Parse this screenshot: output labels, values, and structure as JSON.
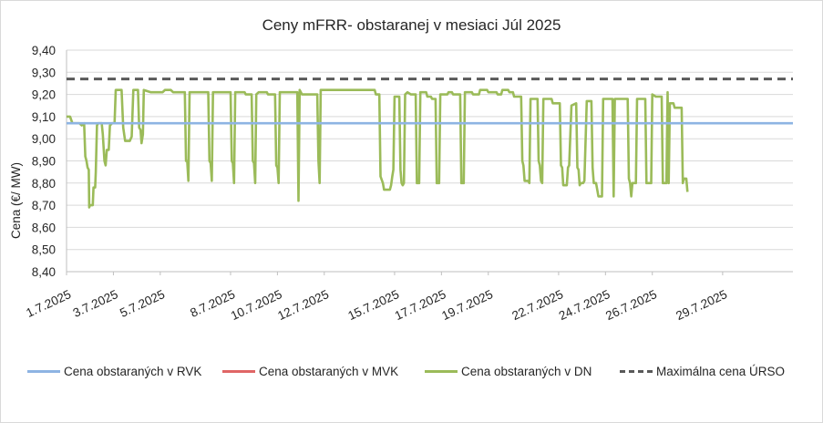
{
  "colors": {
    "rvk": "#8eb4e3",
    "mvk": "#e06666",
    "dn": "#9bbb59",
    "max": "#595959",
    "grid": "#d9d9d9",
    "axis": "#bfbfbf",
    "text": "#262626"
  },
  "chart_data": {
    "type": "line",
    "title": "Ceny mFRR- obstaranej v mesiaci Júl 2025",
    "ylabel": "Cena (€/ MW)",
    "xlabel": "",
    "ylim": [
      8.4,
      9.4
    ],
    "yticks": [
      "8,40",
      "8,50",
      "8,60",
      "8,70",
      "8,80",
      "8,90",
      "9,00",
      "9,10",
      "9,20",
      "9,30",
      "9,40"
    ],
    "xlim": [
      1.0,
      32.0
    ],
    "xticks": [
      {
        "label": "1.7.2025",
        "x": 1.0
      },
      {
        "label": "3.7.2025",
        "x": 3.0
      },
      {
        "label": "5.7.2025",
        "x": 5.0
      },
      {
        "label": "8.7.2025",
        "x": 8.0
      },
      {
        "label": "10.7.2025",
        "x": 10.0
      },
      {
        "label": "12.7.2025",
        "x": 12.0
      },
      {
        "label": "15.7.2025",
        "x": 15.0
      },
      {
        "label": "17.7.2025",
        "x": 17.0
      },
      {
        "label": "19.7.2025",
        "x": 19.0
      },
      {
        "label": "22.7.2025",
        "x": 22.0
      },
      {
        "label": "24.7.2025",
        "x": 24.0
      },
      {
        "label": "26.7.2025",
        "x": 26.0
      },
      {
        "label": "29.7.2025",
        "x": 29.0
      }
    ],
    "grid": true,
    "legend": "bottom",
    "series": [
      {
        "name": "Cena obstaraných v RVK",
        "style": "solid",
        "points": [
          [
            1.0,
            9.07
          ],
          [
            32.0,
            9.07
          ]
        ]
      },
      {
        "name": "Cena obstaraných v MVK",
        "style": "solid",
        "points": []
      },
      {
        "name": "Cena obstaraných v DN",
        "style": "solid",
        "points": [
          [
            1.0,
            9.1
          ],
          [
            1.15,
            9.1
          ],
          [
            1.25,
            9.07
          ],
          [
            1.55,
            9.07
          ],
          [
            1.65,
            9.06
          ],
          [
            1.75,
            9.07
          ],
          [
            1.8,
            8.92
          ],
          [
            1.85,
            8.9
          ],
          [
            1.9,
            8.87
          ],
          [
            1.95,
            8.86
          ],
          [
            1.97,
            8.69
          ],
          [
            2.0,
            8.7
          ],
          [
            2.12,
            8.7
          ],
          [
            2.15,
            8.78
          ],
          [
            2.22,
            8.78
          ],
          [
            2.25,
            8.85
          ],
          [
            2.3,
            9.06
          ],
          [
            2.35,
            9.07
          ],
          [
            2.5,
            9.07
          ],
          [
            2.55,
            9.02
          ],
          [
            2.62,
            8.9
          ],
          [
            2.67,
            8.88
          ],
          [
            2.72,
            8.95
          ],
          [
            2.8,
            8.95
          ],
          [
            2.85,
            9.06
          ],
          [
            2.95,
            9.07
          ],
          [
            3.05,
            9.07
          ],
          [
            3.1,
            9.22
          ],
          [
            3.35,
            9.22
          ],
          [
            3.42,
            9.05
          ],
          [
            3.5,
            8.99
          ],
          [
            3.7,
            8.99
          ],
          [
            3.78,
            9.01
          ],
          [
            3.85,
            9.22
          ],
          [
            4.05,
            9.22
          ],
          [
            4.1,
            9.05
          ],
          [
            4.16,
            9.04
          ],
          [
            4.2,
            8.98
          ],
          [
            4.26,
            9.02
          ],
          [
            4.3,
            9.22
          ],
          [
            4.6,
            9.21
          ],
          [
            5.1,
            9.21
          ],
          [
            5.2,
            9.22
          ],
          [
            5.45,
            9.22
          ],
          [
            5.55,
            9.21
          ],
          [
            6.05,
            9.21
          ],
          [
            6.1,
            8.9
          ],
          [
            6.15,
            8.9
          ],
          [
            6.2,
            8.81
          ],
          [
            6.25,
            9.21
          ],
          [
            7.05,
            9.21
          ],
          [
            7.1,
            8.9
          ],
          [
            7.15,
            8.89
          ],
          [
            7.2,
            8.81
          ],
          [
            7.25,
            9.21
          ],
          [
            8.0,
            9.21
          ],
          [
            8.05,
            8.9
          ],
          [
            8.1,
            8.89
          ],
          [
            8.15,
            8.8
          ],
          [
            8.2,
            9.21
          ],
          [
            8.6,
            9.21
          ],
          [
            8.65,
            9.2
          ],
          [
            8.9,
            9.2
          ],
          [
            8.95,
            8.9
          ],
          [
            9.0,
            8.89
          ],
          [
            9.05,
            8.8
          ],
          [
            9.1,
            9.2
          ],
          [
            9.2,
            9.21
          ],
          [
            9.55,
            9.21
          ],
          [
            9.6,
            9.2
          ],
          [
            9.9,
            9.2
          ],
          [
            9.95,
            8.88
          ],
          [
            10.0,
            8.87
          ],
          [
            10.05,
            8.8
          ],
          [
            10.1,
            9.21
          ],
          [
            10.85,
            9.21
          ],
          [
            10.9,
            8.72
          ],
          [
            10.95,
            9.22
          ],
          [
            11.05,
            9.2
          ],
          [
            11.7,
            9.2
          ],
          [
            11.75,
            8.9
          ],
          [
            11.8,
            8.8
          ],
          [
            11.85,
            9.22
          ],
          [
            12.5,
            9.22
          ],
          [
            13.0,
            9.22
          ],
          [
            13.5,
            9.22
          ],
          [
            14.15,
            9.22
          ],
          [
            14.2,
            9.2
          ],
          [
            14.35,
            9.2
          ],
          [
            14.4,
            8.83
          ],
          [
            14.5,
            8.8
          ],
          [
            14.55,
            8.77
          ],
          [
            14.8,
            8.77
          ],
          [
            14.85,
            8.79
          ],
          [
            14.9,
            8.83
          ],
          [
            14.95,
            8.86
          ],
          [
            15.0,
            9.19
          ],
          [
            15.2,
            9.19
          ],
          [
            15.25,
            8.86
          ],
          [
            15.3,
            8.8
          ],
          [
            15.35,
            8.79
          ],
          [
            15.4,
            8.8
          ],
          [
            15.45,
            9.2
          ],
          [
            15.55,
            9.21
          ],
          [
            15.7,
            9.2
          ],
          [
            15.9,
            9.2
          ],
          [
            15.95,
            8.8
          ],
          [
            16.05,
            8.8
          ],
          [
            16.1,
            9.21
          ],
          [
            16.35,
            9.21
          ],
          [
            16.4,
            9.19
          ],
          [
            16.55,
            9.19
          ],
          [
            16.6,
            9.18
          ],
          [
            16.75,
            9.18
          ],
          [
            16.8,
            8.8
          ],
          [
            16.9,
            8.8
          ],
          [
            16.95,
            9.2
          ],
          [
            17.25,
            9.2
          ],
          [
            17.3,
            9.21
          ],
          [
            17.45,
            9.21
          ],
          [
            17.5,
            9.2
          ],
          [
            17.8,
            9.2
          ],
          [
            17.85,
            8.8
          ],
          [
            17.95,
            8.8
          ],
          [
            18.0,
            9.21
          ],
          [
            18.3,
            9.21
          ],
          [
            18.35,
            9.2
          ],
          [
            18.6,
            9.2
          ],
          [
            18.65,
            9.22
          ],
          [
            18.95,
            9.22
          ],
          [
            19.0,
            9.21
          ],
          [
            19.35,
            9.21
          ],
          [
            19.4,
            9.2
          ],
          [
            19.55,
            9.2
          ],
          [
            19.6,
            9.22
          ],
          [
            19.85,
            9.22
          ],
          [
            19.9,
            9.21
          ],
          [
            20.05,
            9.21
          ],
          [
            20.1,
            9.19
          ],
          [
            20.4,
            9.19
          ],
          [
            20.45,
            8.9
          ],
          [
            20.5,
            8.88
          ],
          [
            20.55,
            8.81
          ],
          [
            20.7,
            8.81
          ],
          [
            20.75,
            8.8
          ],
          [
            20.8,
            9.18
          ],
          [
            21.1,
            9.18
          ],
          [
            21.15,
            8.9
          ],
          [
            21.2,
            8.88
          ],
          [
            21.25,
            8.81
          ],
          [
            21.3,
            8.8
          ],
          [
            21.35,
            9.18
          ],
          [
            21.7,
            9.18
          ],
          [
            21.75,
            9.16
          ],
          [
            22.05,
            9.16
          ],
          [
            22.1,
            8.88
          ],
          [
            22.15,
            8.87
          ],
          [
            22.2,
            8.79
          ],
          [
            22.35,
            8.79
          ],
          [
            22.4,
            8.87
          ],
          [
            22.45,
            8.88
          ],
          [
            22.55,
            9.15
          ],
          [
            22.75,
            9.16
          ],
          [
            22.8,
            8.87
          ],
          [
            22.85,
            8.86
          ],
          [
            22.9,
            8.79
          ],
          [
            22.95,
            8.8
          ],
          [
            23.05,
            8.8
          ],
          [
            23.1,
            8.81
          ],
          [
            23.2,
            9.17
          ],
          [
            23.4,
            9.17
          ],
          [
            23.45,
            8.87
          ],
          [
            23.5,
            8.8
          ],
          [
            23.6,
            8.8
          ],
          [
            23.65,
            8.77
          ],
          [
            23.7,
            8.74
          ],
          [
            23.85,
            8.74
          ],
          [
            23.9,
            9.18
          ],
          [
            24.3,
            9.18
          ],
          [
            24.35,
            8.74
          ],
          [
            24.4,
            9.18
          ],
          [
            24.95,
            9.18
          ],
          [
            25.0,
            8.82
          ],
          [
            25.05,
            8.8
          ],
          [
            25.1,
            8.74
          ],
          [
            25.15,
            8.8
          ],
          [
            25.3,
            8.8
          ],
          [
            25.35,
            9.18
          ],
          [
            25.7,
            9.18
          ],
          [
            25.75,
            8.8
          ],
          [
            25.95,
            8.8
          ],
          [
            26.0,
            9.2
          ],
          [
            26.15,
            9.19
          ],
          [
            26.4,
            9.19
          ],
          [
            26.45,
            8.8
          ],
          [
            26.6,
            8.8
          ],
          [
            26.65,
            9.21
          ],
          [
            26.7,
            8.8
          ],
          [
            26.75,
            9.16
          ],
          [
            26.9,
            9.16
          ],
          [
            26.95,
            9.14
          ],
          [
            27.25,
            9.14
          ],
          [
            27.3,
            8.8
          ],
          [
            27.35,
            8.82
          ],
          [
            27.45,
            8.82
          ],
          [
            27.5,
            8.76
          ]
        ]
      },
      {
        "name": "Maximálna cena ÚRSO",
        "style": "dashed",
        "points": [
          [
            1.0,
            9.27
          ],
          [
            32.0,
            9.27
          ]
        ]
      }
    ]
  }
}
